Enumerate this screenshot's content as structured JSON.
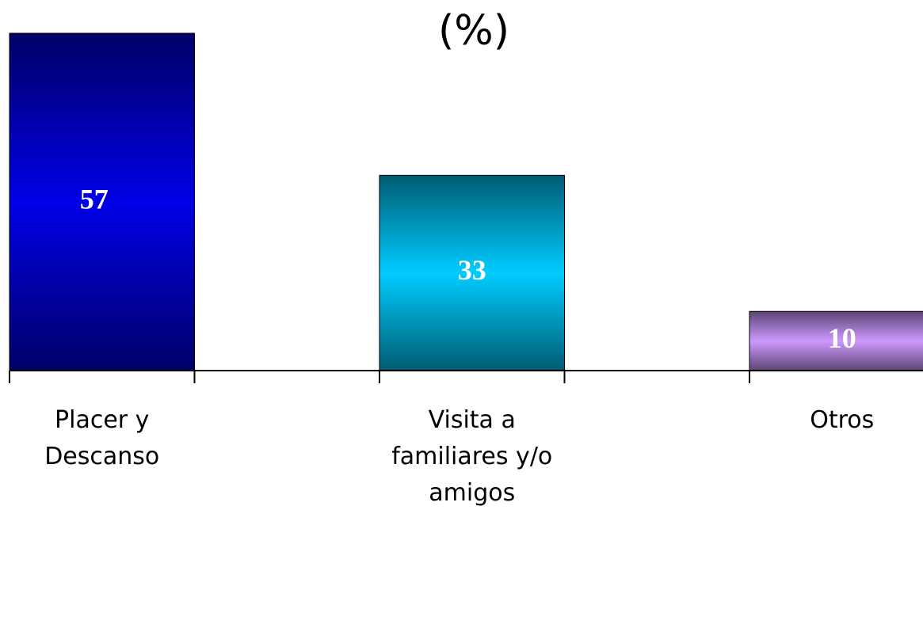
{
  "chart_data": {
    "type": "bar",
    "title": "(%)",
    "categories": [
      "Placer y Descanso",
      "Visita a familiares y/o amigos",
      "Otros"
    ],
    "values": [
      57,
      33,
      10
    ],
    "colors": [
      "#0000e6",
      "#00ccff",
      "#cc99ff"
    ]
  }
}
